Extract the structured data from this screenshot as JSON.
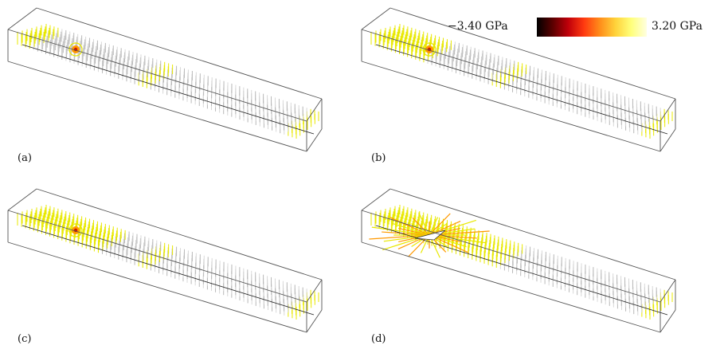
{
  "colorbar": {
    "min_label": "−3.40 GPa",
    "max_label": "3.20 GPa",
    "min_value": -3.4,
    "max_value": 3.2,
    "unit": "GPa",
    "colors": [
      "#000000",
      "#5a0000",
      "#c0000a",
      "#ff3a10",
      "#ff8c1a",
      "#ffd23a",
      "#ffff7a",
      "#ffffe0"
    ]
  },
  "panels": [
    {
      "label": "(a)",
      "highlight_bands": 2,
      "spread": 0.0,
      "crack": false
    },
    {
      "label": "(b)",
      "highlight_bands": 2,
      "spread": 0.35,
      "crack": false
    },
    {
      "label": "(c)",
      "highlight_bands": 2,
      "spread": 0.6,
      "crack": false
    },
    {
      "label": "(d)",
      "highlight_bands": 1,
      "spread": 1.0,
      "crack": true
    }
  ],
  "colors": {
    "box_edge": "#555555",
    "lattice": "#b8b8b8",
    "lattice_light": "#d8d8d8",
    "stress_high": "#e8e800",
    "stress_mid": "#ff9900",
    "stress_low": "#cc1a00"
  }
}
